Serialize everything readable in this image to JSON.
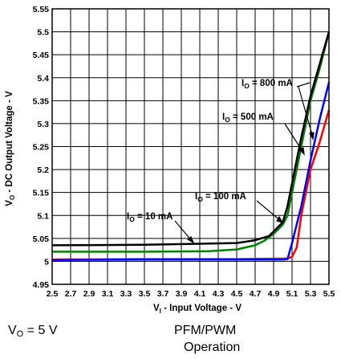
{
  "chart_data": {
    "type": "line",
    "xlabel_main": "V",
    "xlabel_sub": "I",
    "xlabel_rest": " - Input Voltage - V",
    "ylabel_main": "V",
    "ylabel_sub": "O",
    "ylabel_rest": " - DC Output Voltage - V",
    "xlim": [
      2.5,
      5.5
    ],
    "ylim": [
      4.95,
      5.55
    ],
    "xticks": [
      "2.5",
      "2.7",
      "2.9",
      "3.1",
      "3.3",
      "3.5",
      "3.7",
      "3.9",
      "4.1",
      "4.3",
      "4.5",
      "4.7",
      "4.9",
      "5.1",
      "5.3",
      "5.5"
    ],
    "yticks": [
      "4.95",
      "5",
      "5.05",
      "5.1",
      "5.15",
      "5.2",
      "5.25",
      "5.3",
      "5.35",
      "5.4",
      "5.45",
      "5.5",
      "5.55"
    ],
    "grid": true,
    "series": [
      {
        "name": "I_O = 10 mA",
        "color": "#ff0000",
        "points": [
          [
            2.5,
            5.004
          ],
          [
            3.5,
            5.005
          ],
          [
            4.5,
            5.005
          ],
          [
            5.0,
            5.006
          ],
          [
            5.05,
            5.006
          ],
          [
            5.1,
            5.01
          ],
          [
            5.15,
            5.03
          ],
          [
            5.2,
            5.1
          ],
          [
            5.3,
            5.2
          ],
          [
            5.4,
            5.26
          ],
          [
            5.5,
            5.33
          ]
        ]
      },
      {
        "name": "I_O = 100 mA",
        "color": "#0000ff",
        "points": [
          [
            2.5,
            5.003
          ],
          [
            3.5,
            5.004
          ],
          [
            4.5,
            5.004
          ],
          [
            5.0,
            5.004
          ],
          [
            5.05,
            5.005
          ],
          [
            5.1,
            5.04
          ],
          [
            5.2,
            5.12
          ],
          [
            5.3,
            5.22
          ],
          [
            5.4,
            5.31
          ],
          [
            5.5,
            5.39
          ]
        ]
      },
      {
        "name": "I_O = 500 mA",
        "color": "#008000",
        "points": [
          [
            2.5,
            5.021
          ],
          [
            3.5,
            5.021
          ],
          [
            4.2,
            5.022
          ],
          [
            4.5,
            5.026
          ],
          [
            4.7,
            5.035
          ],
          [
            4.8,
            5.045
          ],
          [
            4.9,
            5.06
          ],
          [
            5.0,
            5.08
          ],
          [
            5.05,
            5.1
          ],
          [
            5.1,
            5.15
          ],
          [
            5.2,
            5.25
          ],
          [
            5.3,
            5.35
          ],
          [
            5.4,
            5.42
          ],
          [
            5.5,
            5.5
          ]
        ]
      },
      {
        "name": "I_O = 800 mA",
        "color": "#000000",
        "points": [
          [
            2.5,
            5.035
          ],
          [
            3.5,
            5.036
          ],
          [
            4.5,
            5.04
          ],
          [
            4.7,
            5.046
          ],
          [
            4.85,
            5.055
          ],
          [
            5.0,
            5.085
          ],
          [
            5.05,
            5.12
          ],
          [
            5.1,
            5.17
          ],
          [
            5.2,
            5.27
          ],
          [
            5.3,
            5.36
          ],
          [
            5.4,
            5.43
          ],
          [
            5.5,
            5.5
          ]
        ]
      }
    ],
    "annotations": [
      {
        "main": "I",
        "sub": "O",
        "rest": " = 10 mA"
      },
      {
        "main": "I",
        "sub": "O",
        "rest": " = 100 mA"
      },
      {
        "main": "I",
        "sub": "O",
        "rest": " = 500 mA"
      },
      {
        "main": "I",
        "sub": "O",
        "rest": " = 800 mA"
      }
    ]
  },
  "notes": {
    "vo_main": "V",
    "vo_sub": "O",
    "vo_rest": " = 5 V",
    "mode_line1": "PFM/PWM",
    "mode_line2": "Operation"
  }
}
